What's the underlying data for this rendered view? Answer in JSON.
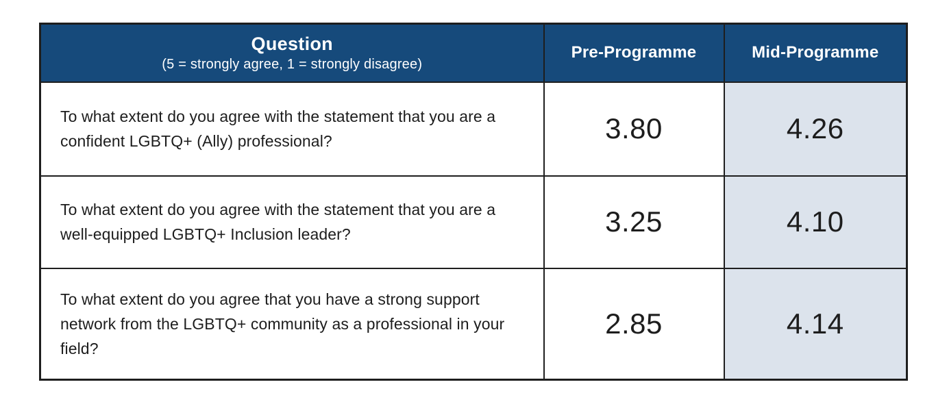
{
  "table": {
    "header": {
      "question_title": "Question",
      "question_subtitle": "(5 = strongly agree, 1 = strongly disagree)",
      "col_pre": "Pre-Programme",
      "col_mid": "Mid-Programme"
    },
    "rows": [
      {
        "question": "To what extent do you agree with the statement that you are a confident LGBTQ+ (Ally) professional?",
        "pre": "3.80",
        "mid": "4.26"
      },
      {
        "question": "To what extent do you agree with the statement that you are a well-equipped LGBTQ+ Inclusion leader?",
        "pre": "3.25",
        "mid": "4.10"
      },
      {
        "question": "To what extent do you agree that you have a strong support network from the LGBTQ+ community as a professional in your field?",
        "pre": "2.85",
        "mid": "4.14"
      }
    ],
    "colors": {
      "header_bg": "#164a7b",
      "header_text": "#ffffff",
      "mid_column_bg": "#dce3ec",
      "border": "#1e1e1e",
      "body_text": "#1d1d1d"
    }
  },
  "chart_data": {
    "type": "table",
    "title": "Question (5 = strongly agree, 1 = strongly disagree)",
    "columns": [
      "Question (5 = strongly agree, 1 = strongly disagree)",
      "Pre-Programme",
      "Mid-Programme"
    ],
    "rows": [
      [
        "To what extent do you agree with the statement that you are a confident LGBTQ+ (Ally) professional?",
        3.8,
        4.26
      ],
      [
        "To what extent do you agree with the statement that you are a well-equipped LGBTQ+ Inclusion leader?",
        3.25,
        4.1
      ],
      [
        "To what extent do you agree that you have a strong support network from the LGBTQ+ community as a professional in your field?",
        2.85,
        4.14
      ]
    ]
  }
}
